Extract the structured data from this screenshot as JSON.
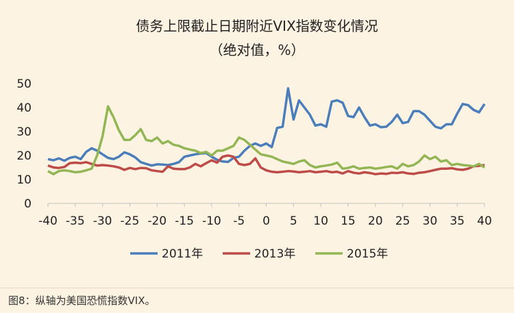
{
  "chart_data": {
    "type": "line",
    "title": "债务上限截止日期附近VIX指数变化情况",
    "subtitle": "（绝对值，%）",
    "xlabel": "",
    "ylabel": "",
    "xlim": [
      -40,
      40
    ],
    "ylim": [
      0,
      50
    ],
    "x_ticks": [
      -40,
      -35,
      -30,
      -25,
      -20,
      -15,
      -10,
      -5,
      0,
      5,
      10,
      15,
      20,
      25,
      30,
      35,
      40
    ],
    "y_ticks": [
      0,
      10,
      20,
      30,
      40,
      50
    ],
    "grid": false,
    "legend_position": "bottom",
    "series": [
      {
        "name": "2011年",
        "color": "#4a7ebb",
        "values": [
          [
            -40,
            18.5
          ],
          [
            -39,
            18
          ],
          [
            -38,
            18.8
          ],
          [
            -37,
            17.8
          ],
          [
            -36,
            19
          ],
          [
            -35,
            19.5
          ],
          [
            -34,
            18.5
          ],
          [
            -33,
            21.5
          ],
          [
            -32,
            23
          ],
          [
            -31,
            22
          ],
          [
            -30,
            20.5
          ],
          [
            -29,
            19
          ],
          [
            -28,
            18.5
          ],
          [
            -27,
            19.5
          ],
          [
            -26,
            21.3
          ],
          [
            -25,
            20.5
          ],
          [
            -24,
            19.2
          ],
          [
            -23,
            17.2
          ],
          [
            -22,
            16.5
          ],
          [
            -21,
            15.8
          ],
          [
            -20,
            16.3
          ],
          [
            -19,
            16.2
          ],
          [
            -18,
            16
          ],
          [
            -17,
            16.5
          ],
          [
            -16,
            17.2
          ],
          [
            -15,
            19.5
          ],
          [
            -14,
            20
          ],
          [
            -13,
            20.5
          ],
          [
            -12,
            20.8
          ],
          [
            -11,
            21
          ],
          [
            -10,
            19.5
          ],
          [
            -9,
            18.2
          ],
          [
            -8,
            17.5
          ],
          [
            -7,
            17.3
          ],
          [
            -6,
            19
          ],
          [
            -5,
            19.5
          ],
          [
            -4,
            22
          ],
          [
            -3,
            24
          ],
          [
            -2,
            25
          ],
          [
            -1,
            24
          ],
          [
            0,
            25
          ],
          [
            1,
            23.5
          ],
          [
            2,
            31.5
          ],
          [
            3,
            32
          ],
          [
            4,
            48
          ],
          [
            5,
            35
          ],
          [
            6,
            43
          ],
          [
            7,
            40
          ],
          [
            8,
            37
          ],
          [
            9,
            32.5
          ],
          [
            10,
            33
          ],
          [
            11,
            32
          ],
          [
            12,
            42.5
          ],
          [
            13,
            43
          ],
          [
            14,
            42
          ],
          [
            15,
            36.5
          ],
          [
            16,
            36
          ],
          [
            17,
            40
          ],
          [
            18,
            36
          ],
          [
            19,
            32.5
          ],
          [
            20,
            33
          ],
          [
            21,
            31.8
          ],
          [
            22,
            32
          ],
          [
            23,
            34
          ],
          [
            24,
            37
          ],
          [
            25,
            33.5
          ],
          [
            26,
            34
          ],
          [
            27,
            38.5
          ],
          [
            28,
            38.5
          ],
          [
            29,
            37
          ],
          [
            30,
            34.5
          ],
          [
            31,
            32
          ],
          [
            32,
            31.3
          ],
          [
            33,
            33
          ],
          [
            34,
            33
          ],
          [
            35,
            37.5
          ],
          [
            36,
            41.5
          ],
          [
            37,
            41
          ],
          [
            38,
            39
          ],
          [
            39,
            38
          ],
          [
            40,
            41.5
          ]
        ]
      },
      {
        "name": "2013年",
        "color": "#be4b48",
        "values": [
          [
            -40,
            15.8
          ],
          [
            -39,
            15
          ],
          [
            -38,
            14.8
          ],
          [
            -37,
            15.2
          ],
          [
            -36,
            16.8
          ],
          [
            -35,
            17
          ],
          [
            -34,
            16.8
          ],
          [
            -33,
            17.2
          ],
          [
            -32,
            16.5
          ],
          [
            -31,
            15.8
          ],
          [
            -30,
            16
          ],
          [
            -29,
            15.8
          ],
          [
            -28,
            15.5
          ],
          [
            -27,
            15
          ],
          [
            -26,
            14
          ],
          [
            -25,
            14.8
          ],
          [
            -24,
            14.3
          ],
          [
            -23,
            14.8
          ],
          [
            -22,
            14.7
          ],
          [
            -21,
            13.8
          ],
          [
            -20,
            13.5
          ],
          [
            -19,
            13.2
          ],
          [
            -18,
            15.5
          ],
          [
            -17,
            14.5
          ],
          [
            -16,
            14.3
          ],
          [
            -15,
            14.3
          ],
          [
            -14,
            15
          ],
          [
            -13,
            16.5
          ],
          [
            -12,
            15.5
          ],
          [
            -11,
            16.8
          ],
          [
            -10,
            18
          ],
          [
            -9,
            17
          ],
          [
            -8,
            19.5
          ],
          [
            -7,
            20
          ],
          [
            -6,
            19.5
          ],
          [
            -5,
            16.5
          ],
          [
            -4,
            16
          ],
          [
            -3,
            16.5
          ],
          [
            -2,
            18.8
          ],
          [
            -1,
            15
          ],
          [
            0,
            13.8
          ],
          [
            1,
            13.2
          ],
          [
            2,
            13
          ],
          [
            3,
            13.2
          ],
          [
            4,
            13.5
          ],
          [
            5,
            13.3
          ],
          [
            6,
            13
          ],
          [
            7,
            13.2
          ],
          [
            8,
            13.5
          ],
          [
            9,
            13
          ],
          [
            10,
            13.2
          ],
          [
            11,
            13.5
          ],
          [
            12,
            13
          ],
          [
            13,
            13.2
          ],
          [
            14,
            12.5
          ],
          [
            15,
            13.5
          ],
          [
            16,
            12.8
          ],
          [
            17,
            12.5
          ],
          [
            18,
            13
          ],
          [
            19,
            12.7
          ],
          [
            20,
            12.2
          ],
          [
            21,
            12.5
          ],
          [
            22,
            12.3
          ],
          [
            23,
            12.8
          ],
          [
            24,
            12.7
          ],
          [
            25,
            13
          ],
          [
            26,
            12.5
          ],
          [
            27,
            12.3
          ],
          [
            28,
            12.8
          ],
          [
            29,
            13
          ],
          [
            30,
            13.5
          ],
          [
            31,
            14
          ],
          [
            32,
            14.5
          ],
          [
            33,
            14.5
          ],
          [
            34,
            14.7
          ],
          [
            35,
            14.2
          ],
          [
            36,
            14
          ],
          [
            37,
            14.5
          ],
          [
            38,
            15.5
          ],
          [
            39,
            15.7
          ],
          [
            40,
            16
          ]
        ]
      },
      {
        "name": "2015年",
        "color": "#93b654",
        "values": [
          [
            -40,
            13.5
          ],
          [
            -39,
            12.2
          ],
          [
            -38,
            13.5
          ],
          [
            -37,
            13.8
          ],
          [
            -36,
            13.5
          ],
          [
            -35,
            13
          ],
          [
            -34,
            13.2
          ],
          [
            -33,
            13.8
          ],
          [
            -32,
            14.5
          ],
          [
            -31,
            20
          ],
          [
            -30,
            28
          ],
          [
            -29,
            40.5
          ],
          [
            -28,
            36
          ],
          [
            -27,
            30.5
          ],
          [
            -26,
            26.5
          ],
          [
            -25,
            26.5
          ],
          [
            -24,
            28.5
          ],
          [
            -23,
            31
          ],
          [
            -22,
            26.5
          ],
          [
            -21,
            26
          ],
          [
            -20,
            27.5
          ],
          [
            -19,
            25
          ],
          [
            -18,
            26
          ],
          [
            -17,
            24.5
          ],
          [
            -16,
            24
          ],
          [
            -15,
            23
          ],
          [
            -14,
            22.5
          ],
          [
            -13,
            22
          ],
          [
            -12,
            21
          ],
          [
            -11,
            21.5
          ],
          [
            -10,
            20
          ],
          [
            -9,
            22
          ],
          [
            -8,
            22
          ],
          [
            -7,
            23
          ],
          [
            -6,
            24
          ],
          [
            -5,
            27.5
          ],
          [
            -4,
            26.5
          ],
          [
            -3,
            24.5
          ],
          [
            -2,
            22.5
          ],
          [
            -1,
            20.5
          ],
          [
            0,
            20
          ],
          [
            1,
            19.5
          ],
          [
            2,
            18.5
          ],
          [
            3,
            17.5
          ],
          [
            4,
            17
          ],
          [
            5,
            16.5
          ],
          [
            6,
            17.5
          ],
          [
            7,
            18
          ],
          [
            8,
            16
          ],
          [
            9,
            15
          ],
          [
            10,
            15.5
          ],
          [
            11,
            15.8
          ],
          [
            12,
            16.2
          ],
          [
            13,
            17
          ],
          [
            14,
            14.5
          ],
          [
            15,
            14.8
          ],
          [
            16,
            15.5
          ],
          [
            17,
            14.5
          ],
          [
            18,
            14.8
          ],
          [
            19,
            15
          ],
          [
            20,
            14.5
          ],
          [
            21,
            14.8
          ],
          [
            22,
            15.2
          ],
          [
            23,
            15.5
          ],
          [
            24,
            14.5
          ],
          [
            25,
            16.5
          ],
          [
            26,
            15.5
          ],
          [
            27,
            16
          ],
          [
            28,
            17.5
          ],
          [
            29,
            20
          ],
          [
            30,
            18.5
          ],
          [
            31,
            19.5
          ],
          [
            32,
            17.5
          ],
          [
            33,
            18
          ],
          [
            34,
            16
          ],
          [
            35,
            16.5
          ],
          [
            36,
            16
          ],
          [
            37,
            15.8
          ],
          [
            38,
            15.5
          ],
          [
            39,
            16.5
          ],
          [
            40,
            15
          ]
        ]
      }
    ]
  },
  "caption": "图8：纵轴为美国恐慌指数VIX。"
}
